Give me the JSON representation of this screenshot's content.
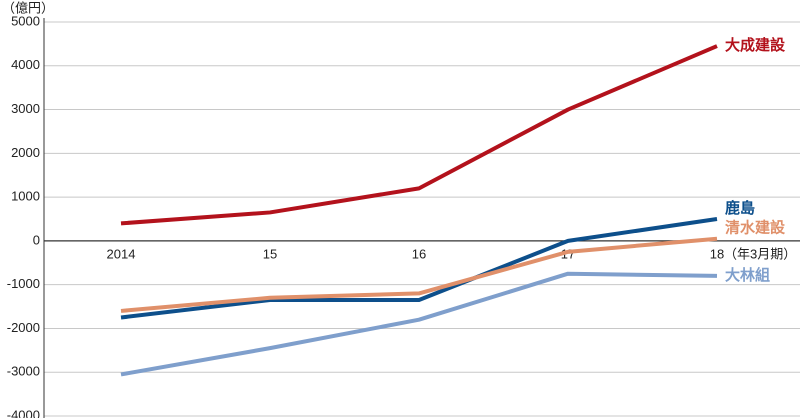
{
  "chart_data": {
    "type": "line",
    "y_axis_label": "（億円）",
    "x_unit_annotation": "（年3月期）",
    "categories": [
      "2014",
      "15",
      "16",
      "17",
      "18"
    ],
    "series": [
      {
        "name": "大成建設",
        "color": "#b3121c",
        "values": [
          400,
          650,
          1200,
          3000,
          4450
        ]
      },
      {
        "name": "鹿島",
        "color": "#0d4f8b",
        "values": [
          -1750,
          -1350,
          -1350,
          0,
          500
        ]
      },
      {
        "name": "清水建設",
        "color": "#e0906a",
        "values": [
          -1600,
          -1300,
          -1200,
          -250,
          50
        ]
      },
      {
        "name": "大林組",
        "color": "#7f9fcc",
        "values": [
          -3050,
          -2450,
          -1800,
          -750,
          -800
        ]
      }
    ],
    "ylim": [
      -4000,
      5000
    ],
    "yticks": [
      -4000,
      -3000,
      -2000,
      -1000,
      0,
      1000,
      2000,
      3000,
      4000,
      5000
    ],
    "grid": true
  }
}
